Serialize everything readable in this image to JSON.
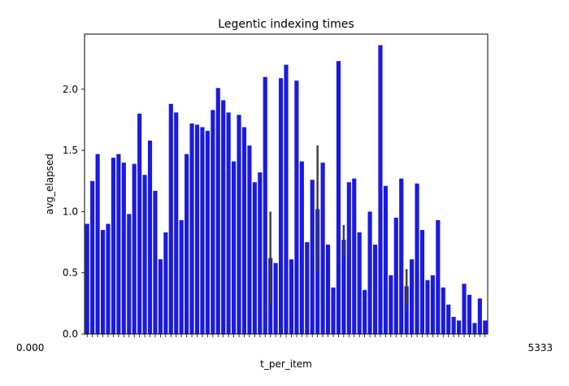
{
  "chart_data": {
    "type": "bar",
    "title": "Legentic indexing times",
    "xlabel": "t_per_item",
    "ylabel": "avg_elapsed",
    "ylim": [
      0,
      2.45
    ],
    "yticks": [
      0.0,
      0.5,
      1.0,
      1.5,
      2.0
    ],
    "ytick_labels": [
      "0.0",
      "0.5",
      "1.0",
      "1.5",
      "2.0"
    ],
    "grid": false,
    "legend": "none",
    "bar_color": "#1a1adf",
    "errorbar_color": "#3b3b3b",
    "xtick_label_left": "0.000",
    "xtick_label_right": "5333",
    "values": [
      0.9,
      1.25,
      1.47,
      0.85,
      0.9,
      1.44,
      1.47,
      1.4,
      0.98,
      1.39,
      1.8,
      1.3,
      1.58,
      1.17,
      0.61,
      0.83,
      1.88,
      1.81,
      0.93,
      1.47,
      1.72,
      1.71,
      1.69,
      1.66,
      1.83,
      2.01,
      1.91,
      1.81,
      1.41,
      1.79,
      1.69,
      1.54,
      1.24,
      1.32,
      2.1,
      0.62,
      0.58,
      2.09,
      2.2,
      0.61,
      2.07,
      1.41,
      0.75,
      1.26,
      1.02,
      1.4,
      0.73,
      0.38,
      2.23,
      0.77,
      1.24,
      1.27,
      0.83,
      0.36,
      1.0,
      0.73,
      2.36,
      1.21,
      0.48,
      0.95,
      1.27,
      0.39,
      0.61,
      1.23,
      0.85,
      0.44,
      0.48,
      0.93,
      0.38,
      0.24,
      0.14,
      0.11,
      0.41,
      0.32,
      0.09,
      0.29,
      0.11
    ],
    "error_bars": [
      {
        "index": 35,
        "low": 0.24,
        "high": 1.0
      },
      {
        "index": 44,
        "low": 0.51,
        "high": 1.54
      },
      {
        "index": 49,
        "low": 0.63,
        "high": 0.89
      },
      {
        "index": 61,
        "low": 0.24,
        "high": 0.53
      }
    ]
  }
}
